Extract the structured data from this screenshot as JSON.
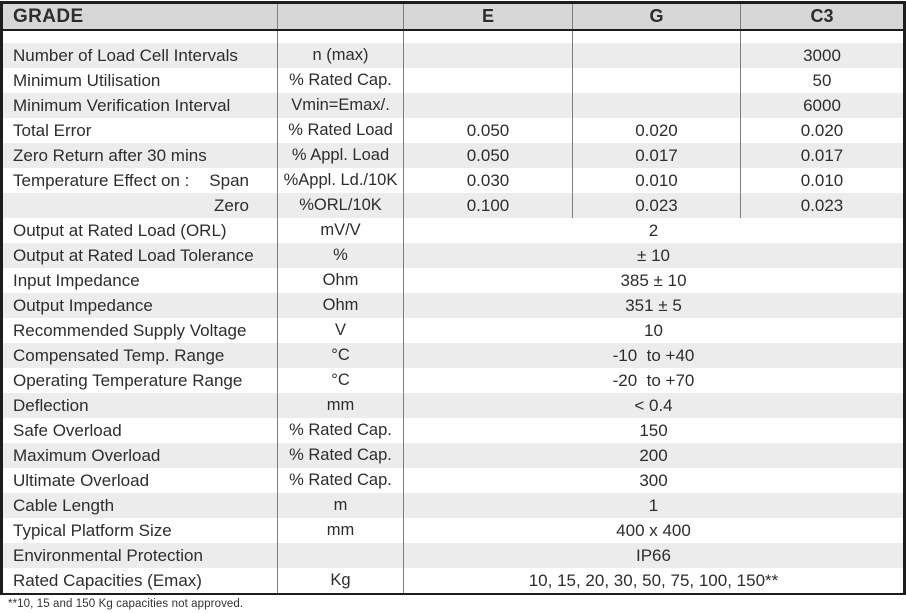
{
  "header": {
    "grade_label": "GRADE",
    "unit_col_label": "",
    "columns": [
      "E",
      "G",
      "C3"
    ]
  },
  "rows": [
    {
      "label": "Number of Load Cell Intervals",
      "unit": "n (max)",
      "e": "",
      "g": "",
      "c3": "3000"
    },
    {
      "label": "Minimum Utilisation",
      "unit": "% Rated Cap.",
      "e": "",
      "g": "",
      "c3": "50"
    },
    {
      "label": "Minimum Verification Interval",
      "unit": "Vmin=Emax/.",
      "e": "",
      "g": "",
      "c3": "6000"
    },
    {
      "label": "Total Error",
      "unit": "% Rated Load",
      "e": "0.050",
      "g": "0.020",
      "c3": "0.020"
    },
    {
      "label": "Zero Return after 30 mins",
      "unit": "% Appl. Load",
      "e": "0.050",
      "g": "0.017",
      "c3": "0.017"
    },
    {
      "label": "Temperature Effect on :",
      "label2": "Span",
      "unit": "%Appl. Ld./10K",
      "e": "0.030",
      "g": "0.010",
      "c3": "0.010"
    },
    {
      "label": "",
      "label2": "Zero",
      "unit": "%ORL/10K",
      "e": "0.100",
      "g": "0.023",
      "c3": "0.023"
    },
    {
      "label": "Output at Rated Load (ORL)",
      "unit": "mV/V",
      "span": "2"
    },
    {
      "label": "Output at Rated Load Tolerance",
      "unit": "%",
      "span": "± 10"
    },
    {
      "label": "Input Impedance",
      "unit": "Ohm",
      "span": "385 ± 10"
    },
    {
      "label": "Output Impedance",
      "unit": "Ohm",
      "span": "351 ± 5"
    },
    {
      "label": "Recommended Supply Voltage",
      "unit": "V",
      "span": "10"
    },
    {
      "label": "Compensated Temp. Range",
      "unit": "°C",
      "span": "-10  to +40"
    },
    {
      "label": "Operating Temperature Range",
      "unit": "°C",
      "span": "-20  to +70"
    },
    {
      "label": "Deflection",
      "unit": "mm",
      "span": "< 0.4"
    },
    {
      "label": "Safe Overload",
      "unit": "% Rated Cap.",
      "span": "150"
    },
    {
      "label": "Maximum Overload",
      "unit": "% Rated Cap.",
      "span": "200"
    },
    {
      "label": "Ultimate Overload",
      "unit": "% Rated Cap.",
      "span": "300"
    },
    {
      "label": "Cable Length",
      "unit": "m",
      "span": "1"
    },
    {
      "label": "Typical Platform Size",
      "unit": "mm",
      "span": "400 x 400"
    },
    {
      "label": "Environmental Protection",
      "unit": "",
      "span": "IP66"
    },
    {
      "label": "Rated Capacities (Emax)",
      "unit": "Kg",
      "span": "10, 15, 20, 30, 50, 75, 100, 150**"
    }
  ],
  "footnote": "**10, 15 and 150 Kg capacities not approved.",
  "colors": {
    "header_background": "#d7d7d7",
    "row_stripe": "#ececec",
    "outer_border": "#1d1d1d",
    "column_separator": "#7e7e7e",
    "text": "#2d2d2d"
  }
}
